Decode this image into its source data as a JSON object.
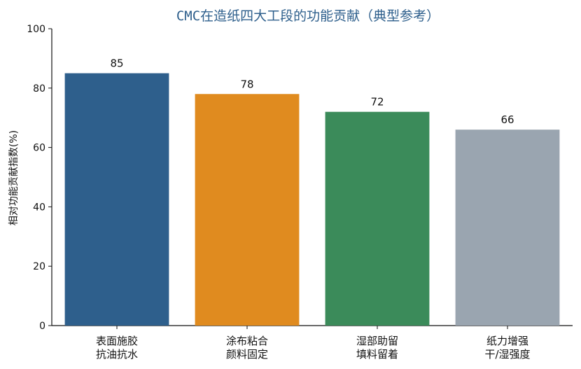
{
  "chart_data": {
    "type": "bar",
    "title": "CMC在造纸四大工段的功能贡献（典型参考）",
    "xlabel": "",
    "ylabel": "相对功能贡献指数(%)",
    "ylim": [
      0,
      100
    ],
    "yticks": [
      "0",
      "20",
      "40",
      "60",
      "80",
      "100"
    ],
    "categories": [
      [
        "表面施胶",
        "抗油抗水"
      ],
      [
        "涂布粘合",
        "颜料固定"
      ],
      [
        "湿部助留",
        "填料留着"
      ],
      [
        "纸力增强",
        "干/湿强度"
      ]
    ],
    "values": [
      85,
      78,
      72,
      66
    ],
    "value_labels": [
      "85",
      "78",
      "72",
      "66"
    ],
    "colors": [
      "#2e5f8c",
      "#e08b1f",
      "#3b8b5a",
      "#9aa5b0"
    ],
    "grid": false,
    "legend": "none"
  }
}
